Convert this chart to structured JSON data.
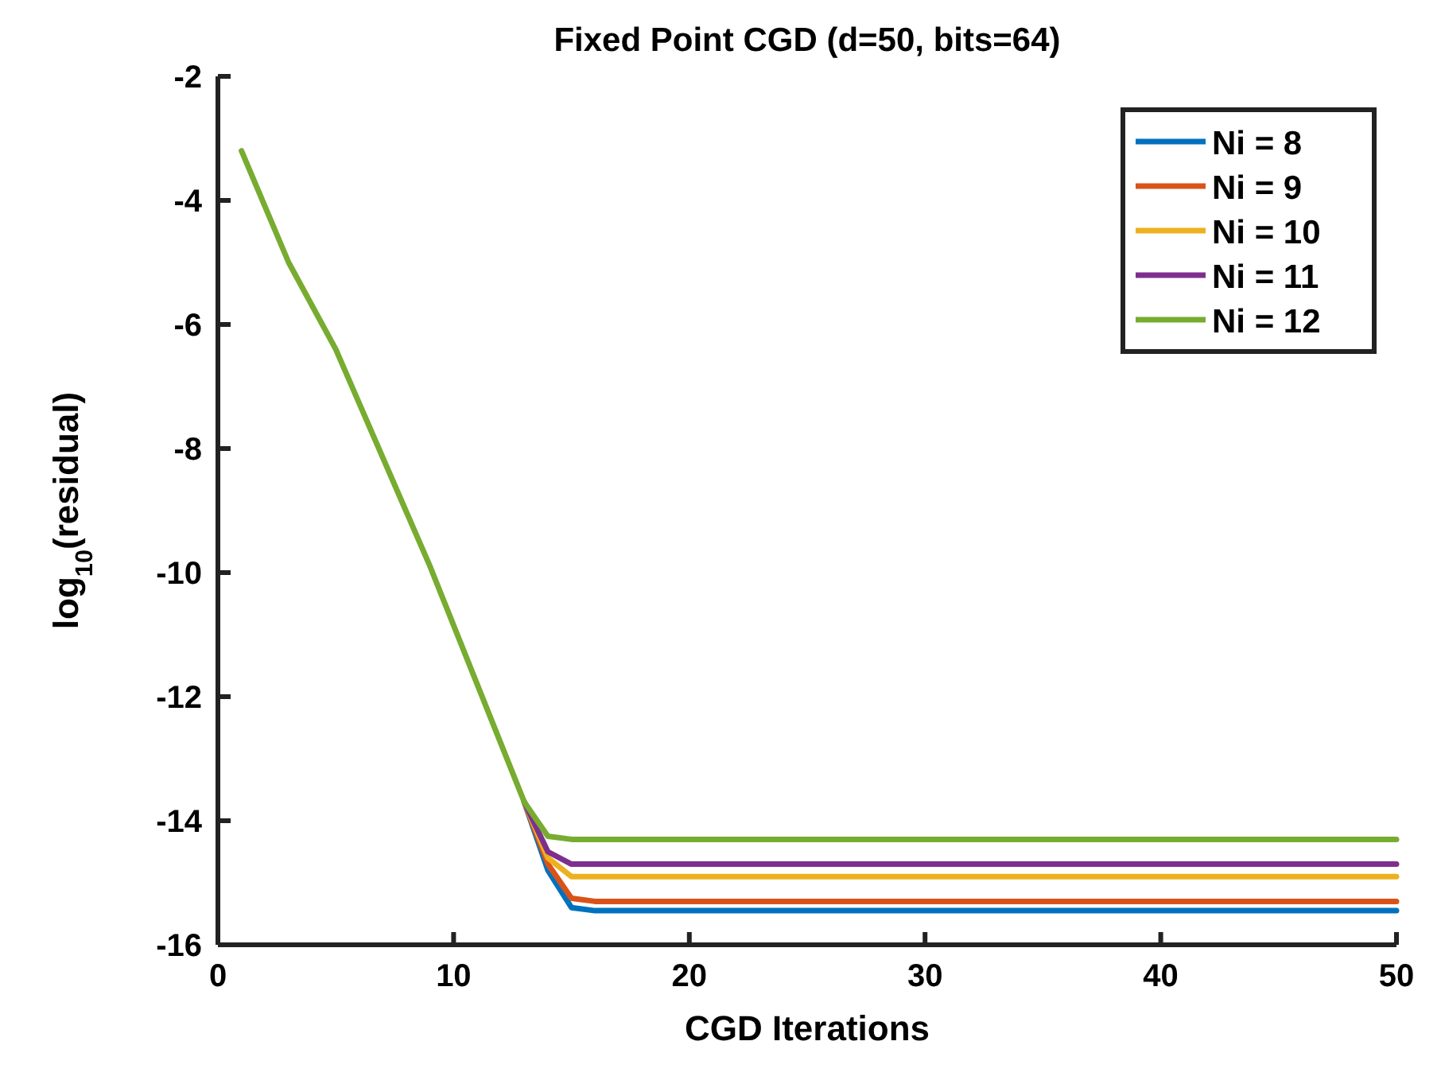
{
  "chart_data": {
    "type": "line",
    "title": "Fixed Point CGD (d=50, bits=64)",
    "xlabel": "CGD Iterations",
    "ylabel": "log$_{10}$(residual)",
    "x": [
      1,
      3,
      5,
      9,
      13,
      14,
      15,
      16,
      50
    ],
    "series": [
      {
        "name": "Ni = 8",
        "color": "#0072bd",
        "x": [
          13,
          14,
          15,
          16,
          50
        ],
        "values": [
          -13.7,
          -14.8,
          -15.4,
          -15.45,
          -15.45
        ]
      },
      {
        "name": "Ni = 9",
        "color": "#d95319",
        "x": [
          13,
          14,
          15,
          16,
          50
        ],
        "values": [
          -13.7,
          -14.7,
          -15.25,
          -15.3,
          -15.3
        ]
      },
      {
        "name": "Ni = 10",
        "color": "#edb120",
        "x": [
          13,
          14,
          15,
          16,
          50
        ],
        "values": [
          -13.7,
          -14.6,
          -14.9,
          -14.9,
          -14.9
        ]
      },
      {
        "name": "Ni = 11",
        "color": "#7e2f8e",
        "x": [
          13,
          14,
          15,
          16,
          50
        ],
        "values": [
          -13.7,
          -14.5,
          -14.7,
          -14.7,
          -14.7
        ]
      },
      {
        "name": "Ni = 12",
        "color": "#77ac30",
        "values": [
          -3.2,
          -5.0,
          -6.4,
          -9.9,
          -13.7,
          -14.25,
          -14.3,
          -14.3,
          -14.3
        ]
      }
    ],
    "xlim": [
      0,
      50
    ],
    "xticks": [
      0,
      10,
      20,
      30,
      40,
      50
    ],
    "ylim": [
      -16,
      -2
    ],
    "yticks": [
      -16,
      -14,
      -12,
      -10,
      -8,
      -6,
      -4,
      -2
    ],
    "legend": "top right",
    "grid": false,
    "line_style": "solid",
    "marker": "none"
  }
}
